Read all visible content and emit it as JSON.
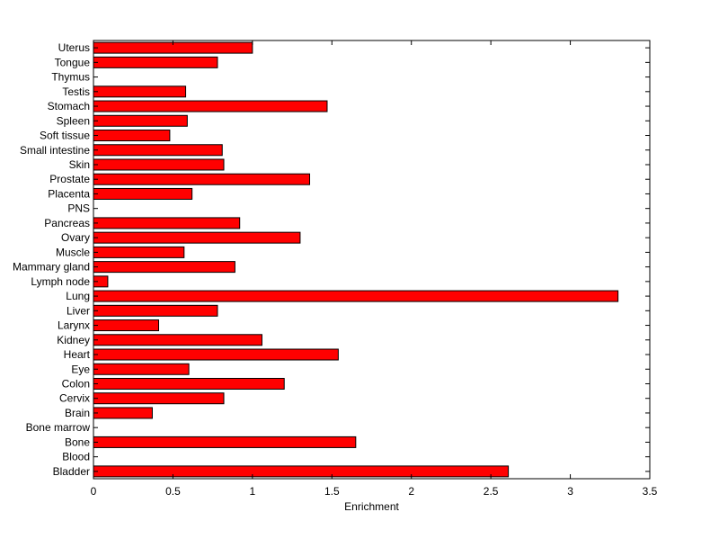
{
  "colors": {
    "bar_fill": "#ff0000",
    "bar_stroke": "#000000",
    "axes": "#000000",
    "background": "#ffffff"
  },
  "chart_data": {
    "type": "bar",
    "orientation": "horizontal",
    "title": "",
    "xlabel": "Enrichment",
    "ylabel": "",
    "xlim": [
      0,
      3.5
    ],
    "xticks": [
      "0",
      "0.5",
      "1",
      "1.5",
      "2",
      "2.5",
      "3",
      "3.5"
    ],
    "grid": false,
    "legend": "none",
    "categories": [
      "Bladder",
      "Blood",
      "Bone",
      "Bone marrow",
      "Brain",
      "Cervix",
      "Colon",
      "Eye",
      "Heart",
      "Kidney",
      "Larynx",
      "Liver",
      "Lung",
      "Lymph node",
      "Mammary gland",
      "Muscle",
      "Ovary",
      "Pancreas",
      "PNS",
      "Placenta",
      "Prostate",
      "Skin",
      "Small intestine",
      "Soft tissue",
      "Spleen",
      "Stomach",
      "Testis",
      "Thymus",
      "Tongue",
      "Uterus"
    ],
    "values": [
      2.61,
      0,
      1.65,
      0,
      0.37,
      0.82,
      1.2,
      0.6,
      1.54,
      1.06,
      0.41,
      0.78,
      3.3,
      0.09,
      0.89,
      0.57,
      1.3,
      0.92,
      0,
      0.62,
      1.36,
      0.82,
      0.81,
      0.48,
      0.59,
      1.47,
      0.58,
      0,
      0.78,
      1.0
    ]
  }
}
